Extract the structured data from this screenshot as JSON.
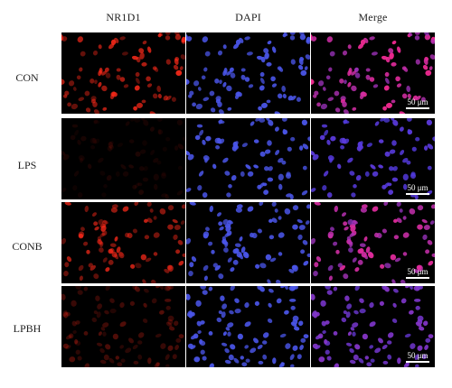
{
  "figure": {
    "columns": [
      "NR1D1",
      "DAPI",
      "Merge"
    ],
    "rows": [
      {
        "label": "CON",
        "red_intensity": 0.95,
        "scale_bar": "50 μm"
      },
      {
        "label": "LPS",
        "red_intensity": 0.12,
        "scale_bar": "50 μm"
      },
      {
        "label": "CONB",
        "red_intensity": 0.85,
        "scale_bar": "50 μm"
      },
      {
        "label": "LPBH",
        "red_intensity": 0.35,
        "scale_bar": "50 μm"
      }
    ],
    "colors": {
      "nr1d1_channel": "#ff2a1a",
      "dapi_channel": "#4a55e8",
      "background": "#000000"
    }
  }
}
